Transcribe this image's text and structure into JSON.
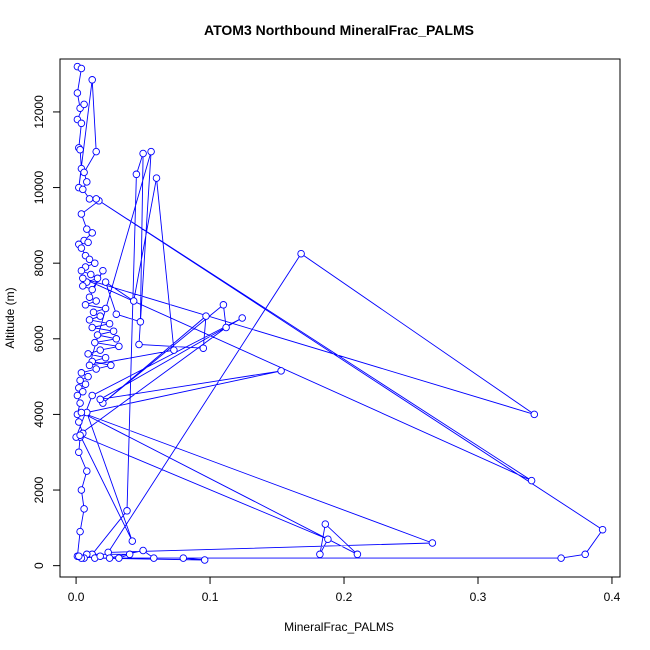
{
  "chart_data": {
    "type": "line",
    "title": "ATOM3 Northbound MineralFrac_PALMS",
    "xlabel": "MineralFrac_PALMS",
    "ylabel": "Altitude (m)",
    "xlim": [
      -0.012,
      0.406
    ],
    "ylim": [
      -300,
      13400
    ],
    "xticks": [
      0.0,
      0.1,
      0.2,
      0.3,
      0.4
    ],
    "xtick_labels": [
      "0.0",
      "0.1",
      "0.2",
      "0.3",
      "0.4"
    ],
    "yticks": [
      0,
      2000,
      4000,
      6000,
      8000,
      10000,
      12000
    ],
    "ytick_labels": [
      "0",
      "2000",
      "4000",
      "6000",
      "8000",
      "10000",
      "12000"
    ],
    "grid": false,
    "legend": "none",
    "colors": {
      "series": "#0000ff",
      "axis": "#000000"
    },
    "marker": "open-circle",
    "series": [
      {
        "name": "",
        "x": [
          0.001,
          0.004,
          0.001,
          0.003,
          0.006,
          0.001,
          0.004,
          0.002,
          0.003,
          0.004,
          0.002,
          0.012,
          0.015,
          0.006,
          0.008,
          0.005,
          0.01,
          0.017,
          0.004,
          0.008,
          0.012,
          0.006,
          0.009,
          0.002,
          0.004,
          0.007,
          0.01,
          0.014,
          0.007,
          0.004,
          0.011,
          0.016,
          0.008,
          0.005,
          0.012,
          0.02,
          0.01,
          0.015,
          0.007,
          0.022,
          0.013,
          0.018,
          0.01,
          0.025,
          0.012,
          0.028,
          0.016,
          0.03,
          0.014,
          0.032,
          0.018,
          0.009,
          0.022,
          0.012,
          0.026,
          0.015,
          0.004,
          0.009,
          0.003,
          0.007,
          0.002,
          0.005,
          0.001,
          0.003,
          0.001,
          0.002,
          0.005,
          0.003,
          0.002,
          0.008,
          0.004,
          0.006,
          0.003,
          0.001,
          0.012,
          0.038,
          0.045,
          0.05,
          0.048,
          0.03,
          0.022,
          0.043,
          0.06,
          0.073,
          0.01,
          0.056,
          0.047,
          0.095,
          0.097,
          0.02,
          0.11,
          0.112,
          0.0,
          0.012,
          0.124,
          0.018,
          0.153,
          0.008,
          0.042,
          0.003,
          0.188,
          0.182,
          0.186,
          0.21,
          0.004,
          0.266,
          0.024,
          0.168,
          0.342,
          0.005,
          0.34,
          0.015,
          0.393,
          0.38,
          0.362,
          0.025,
          0.05,
          0.058,
          0.08,
          0.096,
          0.014,
          0.032,
          0.04,
          0.008,
          0.018,
          0.006,
          0.004,
          0.002
        ],
        "y": [
          13200,
          13150,
          12500,
          12100,
          12200,
          11800,
          11700,
          11050,
          11000,
          10500,
          10000,
          12850,
          10950,
          10400,
          10150,
          9950,
          9700,
          9650,
          9300,
          8900,
          8800,
          8600,
          8550,
          8500,
          8400,
          8200,
          8100,
          8000,
          7900,
          7800,
          7700,
          7600,
          7500,
          7400,
          7300,
          7800,
          7100,
          7000,
          6900,
          6800,
          6700,
          6600,
          6500,
          6400,
          6300,
          6200,
          6100,
          6000,
          5900,
          5800,
          5700,
          5600,
          5500,
          5400,
          5300,
          5200,
          5100,
          5000,
          4900,
          4800,
          4700,
          4600,
          4500,
          4300,
          4000,
          3800,
          3500,
          3400,
          3000,
          2500,
          2000,
          1500,
          900,
          250,
          300,
          1450,
          10350,
          10900,
          6450,
          6650,
          7500,
          7000,
          10250,
          5700,
          5300,
          10950,
          5850,
          5750,
          6600,
          4300,
          6900,
          6300,
          3400,
          4500,
          6550,
          4400,
          5150,
          4050,
          650,
          3450,
          700,
          300,
          1100,
          300,
          4050,
          600,
          350,
          8250,
          4000,
          7600,
          2250,
          9700,
          950,
          300,
          200,
          200,
          400,
          200,
          200,
          150,
          200,
          200,
          300,
          300,
          250,
          200,
          200,
          250
        ]
      }
    ]
  }
}
